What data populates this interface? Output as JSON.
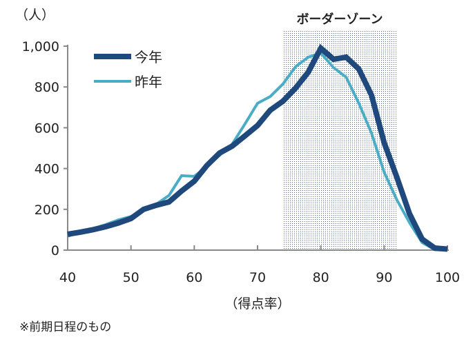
{
  "chart_data": {
    "type": "line",
    "ylabel": "（人）",
    "xlabel": "（得点率）",
    "xlim": [
      40,
      100
    ],
    "ylim": [
      0,
      1000
    ],
    "x_ticks": [
      40,
      50,
      60,
      70,
      80,
      90,
      100
    ],
    "y_ticks": [
      0,
      200,
      400,
      600,
      800,
      1000
    ],
    "y_tick_labels": [
      "0",
      "200",
      "400",
      "600",
      "800",
      "1,000"
    ],
    "x": [
      40,
      42,
      44,
      46,
      48,
      50,
      52,
      54,
      56,
      58,
      60,
      62,
      64,
      66,
      68,
      70,
      72,
      74,
      76,
      78,
      80,
      82,
      84,
      86,
      88,
      90,
      92,
      94,
      96,
      98,
      100
    ],
    "series": [
      {
        "name": "今年",
        "color": "#1f497d",
        "values": [
          78,
          88,
          100,
          115,
          133,
          155,
          200,
          220,
          236,
          290,
          338,
          415,
          476,
          510,
          560,
          611,
          686,
          730,
          794,
          872,
          990,
          936,
          946,
          888,
          760,
          527,
          358,
          179,
          54,
          10,
          5
        ]
      },
      {
        "name": "昨年",
        "color": "#4bacc6",
        "values": [
          68,
          88,
          105,
          125,
          148,
          165,
          195,
          225,
          268,
          365,
          362,
          410,
          465,
          520,
          618,
          720,
          753,
          814,
          899,
          946,
          966,
          895,
          848,
          720,
          574,
          382,
          247,
          135,
          37,
          2,
          0
        ]
      }
    ],
    "shaded_region": {
      "label": "ボーダーゾーン",
      "x_range": [
        74,
        92
      ]
    },
    "legend_position": "top-left",
    "grid": false
  },
  "footnote": "※前期日程のもの"
}
